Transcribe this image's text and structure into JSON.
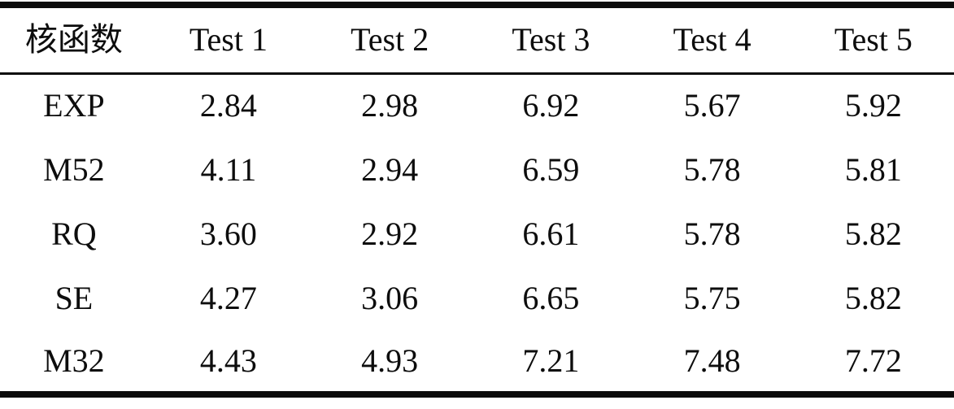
{
  "table": {
    "columns": [
      "核函数",
      "Test 1",
      "Test 2",
      "Test 3",
      "Test 4",
      "Test 5"
    ],
    "rows": [
      {
        "kernel": "EXP",
        "values": [
          "2.84",
          "2.98",
          "6.92",
          "5.67",
          "5.92"
        ]
      },
      {
        "kernel": "M52",
        "values": [
          "4.11",
          "2.94",
          "6.59",
          "5.78",
          "5.81"
        ]
      },
      {
        "kernel": "RQ",
        "values": [
          "3.60",
          "2.92",
          "6.61",
          "5.78",
          "5.82"
        ]
      },
      {
        "kernel": "SE",
        "values": [
          "4.27",
          "3.06",
          "6.65",
          "5.75",
          "5.82"
        ]
      },
      {
        "kernel": "M32",
        "values": [
          "4.43",
          "4.93",
          "7.21",
          "7.48",
          "7.72"
        ]
      }
    ]
  },
  "chart_data": {
    "type": "table",
    "title": "",
    "columns": [
      "核函数",
      "Test 1",
      "Test 2",
      "Test 3",
      "Test 4",
      "Test 5"
    ],
    "categories": [
      "EXP",
      "M52",
      "RQ",
      "SE",
      "M32"
    ],
    "series": [
      {
        "name": "Test 1",
        "values": [
          2.84,
          4.11,
          3.6,
          4.27,
          4.43
        ]
      },
      {
        "name": "Test 2",
        "values": [
          2.98,
          2.94,
          2.92,
          3.06,
          4.93
        ]
      },
      {
        "name": "Test 3",
        "values": [
          6.92,
          6.59,
          6.61,
          6.65,
          7.21
        ]
      },
      {
        "name": "Test 4",
        "values": [
          5.67,
          5.78,
          5.78,
          5.75,
          7.48
        ]
      },
      {
        "name": "Test 5",
        "values": [
          5.92,
          5.81,
          5.82,
          5.82,
          7.72
        ]
      }
    ]
  },
  "colors": {
    "rule": "#0b0b0b",
    "text": "#0d0d0d",
    "background": "#ffffff"
  }
}
